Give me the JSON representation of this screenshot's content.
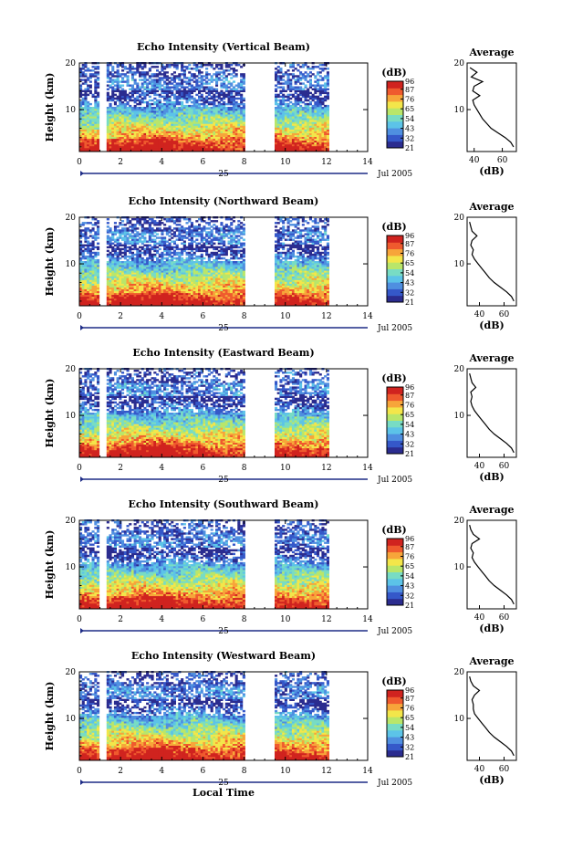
{
  "chart_data": [
    {
      "type": "heatmap",
      "title": "Echo Intensity (Vertical Beam)",
      "ylabel": "Height (km)",
      "xlim": [
        0,
        14
      ],
      "ylim": [
        1,
        20
      ],
      "x_ticks": [
        0,
        2,
        4,
        6,
        8,
        10,
        12,
        14
      ],
      "y_ticks": [
        10,
        20
      ],
      "date_day": "25",
      "date_label": "Jul 2005",
      "data_gaps": [
        [
          1.0,
          1.3
        ],
        [
          8.0,
          9.5
        ],
        [
          12.1,
          14
        ]
      ],
      "colorbar": {
        "unit": "(dB)",
        "ticks": [
          96,
          87,
          76,
          65,
          54,
          43,
          32,
          21
        ],
        "range": [
          21,
          96
        ]
      },
      "profile": {
        "title": "Average",
        "xlabel": "(dB)",
        "xlim": [
          35,
          70
        ],
        "x_ticks": [
          40,
          60
        ],
        "y_ticks": [
          10,
          20
        ],
        "height": [
          2,
          3,
          4,
          5,
          6,
          7,
          8,
          9,
          10,
          11,
          12,
          13,
          14,
          15,
          16,
          17,
          18,
          19
        ],
        "value": [
          68,
          66,
          62,
          57,
          52,
          49,
          46,
          44,
          42,
          40,
          39,
          44,
          39,
          40,
          46,
          38,
          42,
          37
        ]
      }
    },
    {
      "type": "heatmap",
      "title": "Echo Intensity (Northward Beam)",
      "ylabel": "Height (km)",
      "xlim": [
        0,
        14
      ],
      "ylim": [
        1,
        20
      ],
      "x_ticks": [
        0,
        2,
        4,
        6,
        8,
        10,
        12,
        14
      ],
      "y_ticks": [
        10,
        20
      ],
      "date_day": "25",
      "date_label": "Jul 2005",
      "data_gaps": [
        [
          1.0,
          1.3
        ],
        [
          8.0,
          9.5
        ],
        [
          12.1,
          14
        ]
      ],
      "colorbar": {
        "unit": "(dB)",
        "ticks": [
          96,
          87,
          76,
          65,
          54,
          43,
          32,
          21
        ],
        "range": [
          21,
          96
        ]
      },
      "profile": {
        "title": "Average",
        "xlabel": "(dB)",
        "xlim": [
          30,
          70
        ],
        "x_ticks": [
          40,
          60
        ],
        "y_ticks": [
          10,
          20
        ],
        "height": [
          2,
          3,
          4,
          5,
          6,
          7,
          8,
          9,
          10,
          11,
          12,
          13,
          14,
          15,
          16,
          17,
          18,
          19
        ],
        "value": [
          68,
          66,
          62,
          57,
          52,
          48,
          45,
          42,
          39,
          36,
          34,
          35,
          33,
          34,
          38,
          34,
          33,
          32
        ]
      }
    },
    {
      "type": "heatmap",
      "title": "Echo Intensity (Eastward Beam)",
      "ylabel": "Height (km)",
      "xlim": [
        0,
        14
      ],
      "ylim": [
        1,
        20
      ],
      "x_ticks": [
        0,
        2,
        4,
        6,
        8,
        10,
        12,
        14
      ],
      "y_ticks": [
        10,
        20
      ],
      "date_day": "25",
      "date_label": "Jul 2005",
      "data_gaps": [
        [
          1.0,
          1.3
        ],
        [
          8.0,
          9.5
        ],
        [
          12.1,
          14
        ]
      ],
      "colorbar": {
        "unit": "(dB)",
        "ticks": [
          96,
          87,
          76,
          65,
          54,
          43,
          32,
          21
        ],
        "range": [
          21,
          96
        ]
      },
      "profile": {
        "title": "Average",
        "xlabel": "(dB)",
        "xlim": [
          30,
          70
        ],
        "x_ticks": [
          40,
          60
        ],
        "y_ticks": [
          10,
          20
        ],
        "height": [
          2,
          3,
          4,
          5,
          6,
          7,
          8,
          9,
          10,
          11,
          12,
          13,
          14,
          15,
          16,
          17,
          18,
          19
        ],
        "value": [
          68,
          66,
          62,
          57,
          52,
          48,
          45,
          42,
          39,
          36,
          34,
          33,
          34,
          33,
          37,
          34,
          33,
          32
        ]
      }
    },
    {
      "type": "heatmap",
      "title": "Echo Intensity (Southward Beam)",
      "ylabel": "Height (km)",
      "xlim": [
        0,
        14
      ],
      "ylim": [
        1,
        20
      ],
      "x_ticks": [
        0,
        2,
        4,
        6,
        8,
        10,
        12,
        14
      ],
      "y_ticks": [
        10,
        20
      ],
      "date_day": "25",
      "date_label": "Jul 2005",
      "data_gaps": [
        [
          1.0,
          1.3
        ],
        [
          8.0,
          9.5
        ],
        [
          12.1,
          14
        ]
      ],
      "colorbar": {
        "unit": "(dB)",
        "ticks": [
          96,
          87,
          76,
          65,
          54,
          43,
          32,
          21
        ],
        "range": [
          21,
          96
        ]
      },
      "profile": {
        "title": "Average",
        "xlabel": "(dB)",
        "xlim": [
          30,
          70
        ],
        "x_ticks": [
          40,
          60
        ],
        "y_ticks": [
          10,
          20
        ],
        "height": [
          2,
          3,
          4,
          5,
          6,
          7,
          8,
          9,
          10,
          11,
          12,
          13,
          14,
          15,
          16,
          17,
          18,
          19
        ],
        "value": [
          68,
          66,
          62,
          57,
          52,
          48,
          45,
          42,
          39,
          36,
          34,
          35,
          33,
          34,
          40,
          35,
          33,
          32
        ]
      }
    },
    {
      "type": "heatmap",
      "title": "Echo Intensity (Westward Beam)",
      "ylabel": "Height (km)",
      "xlabel": "Local Time",
      "xlim": [
        0,
        14
      ],
      "ylim": [
        1,
        20
      ],
      "x_ticks": [
        0,
        2,
        4,
        6,
        8,
        10,
        12,
        14
      ],
      "y_ticks": [
        10,
        20
      ],
      "date_day": "25",
      "date_label": "Jul 2005",
      "data_gaps": [
        [
          1.0,
          1.3
        ],
        [
          8.0,
          9.5
        ],
        [
          12.1,
          14
        ]
      ],
      "colorbar": {
        "unit": "(dB)",
        "ticks": [
          96,
          87,
          76,
          65,
          54,
          43,
          32,
          21
        ],
        "range": [
          21,
          96
        ]
      },
      "profile": {
        "title": "Average",
        "xlabel": "(dB)",
        "xlim": [
          30,
          70
        ],
        "x_ticks": [
          40,
          60
        ],
        "y_ticks": [
          10,
          20
        ],
        "height": [
          2,
          3,
          4,
          5,
          6,
          7,
          8,
          9,
          10,
          11,
          12,
          13,
          14,
          15,
          16,
          17,
          18,
          19
        ],
        "value": [
          68,
          66,
          62,
          57,
          52,
          48,
          45,
          42,
          39,
          36,
          35,
          35,
          34,
          36,
          40,
          35,
          33,
          32
        ]
      }
    }
  ],
  "colormap": [
    "#2b2c8f",
    "#3558c9",
    "#4f8fe0",
    "#5cc3e8",
    "#78dcc4",
    "#b9e66a",
    "#f3e64a",
    "#f7a53a",
    "#ef5a2e",
    "#d0231f"
  ]
}
